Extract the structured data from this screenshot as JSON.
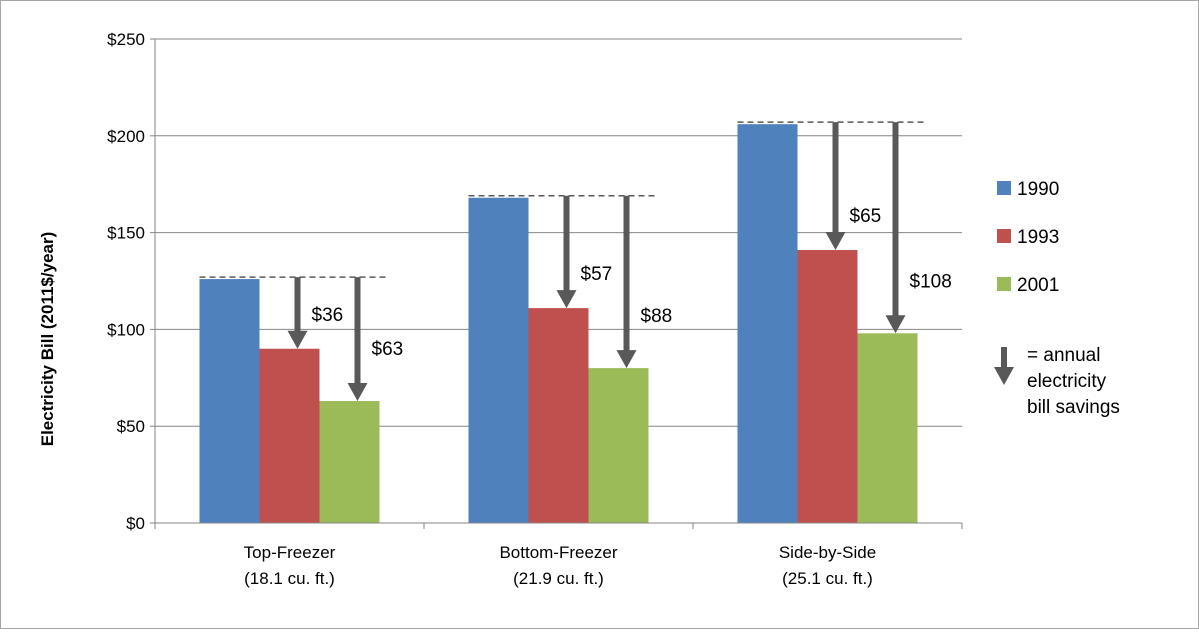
{
  "chart_data": {
    "type": "bar",
    "categories": [
      "Top-Freezer\n(18.1 cu. ft.)",
      "Bottom-Freezer\n(21.9 cu. ft.)",
      "Side-by-Side\n(25.1 cu. ft.)"
    ],
    "series": [
      {
        "name": "1990",
        "values": [
          126,
          168,
          206
        ]
      },
      {
        "name": "1993",
        "values": [
          90,
          111,
          141
        ]
      },
      {
        "name": "2001",
        "values": [
          63,
          80,
          98
        ]
      }
    ],
    "ylabel": "Electricity Bill (2011$/year)",
    "xlabel": "",
    "title": "",
    "ylim": [
      0,
      250
    ],
    "yticks": [
      0,
      50,
      100,
      150,
      200,
      250
    ],
    "ytick_labels": [
      "$0",
      "$50",
      "$100",
      "$150",
      "$200",
      "$250"
    ],
    "grid": true,
    "legend_position": "right",
    "annotations": [
      {
        "category": 0,
        "savings_1993": "$36",
        "savings_2001": "$63"
      },
      {
        "category": 1,
        "savings_1993": "$57",
        "savings_2001": "$88"
      },
      {
        "category": 2,
        "savings_1993": "$65",
        "savings_2001": "$108"
      }
    ],
    "arrow_legend_text": [
      "= annual",
      "electricity",
      "bill savings"
    ],
    "colors": {
      "1990": "#4f81bd",
      "1993": "#c0504d",
      "2001": "#9bbb59",
      "arrow": "#595959",
      "grid": "#868686"
    }
  }
}
